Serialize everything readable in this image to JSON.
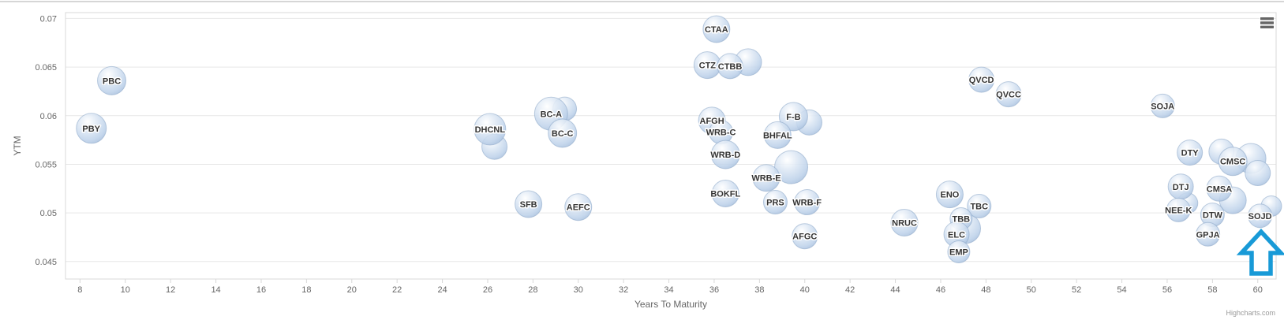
{
  "chart": {
    "title": "",
    "credit": "Highcharts.com",
    "menu_icon": "hamburger-icon"
  },
  "chart_data": {
    "type": "scatter",
    "subtype": "bubble",
    "title": "",
    "xlabel": "Years To Maturity",
    "ylabel": "YTM",
    "xlim": [
      7.36,
      60.81
    ],
    "ylim": [
      0.0432,
      0.0706
    ],
    "x_ticks": [
      8,
      10,
      12,
      14,
      16,
      18,
      20,
      22,
      24,
      26,
      28,
      30,
      32,
      34,
      36,
      38,
      40,
      42,
      44,
      46,
      48,
      50,
      52,
      54,
      56,
      58,
      60
    ],
    "y_ticks": [
      "0.045",
      "0.05",
      "0.055",
      "0.06",
      "0.065",
      "0.07"
    ],
    "grid": "horizontal",
    "legend": "none",
    "points": [
      {
        "label": "PBY",
        "x": 8.5,
        "y": 0.0587,
        "r": 19
      },
      {
        "label": "PBC",
        "x": 9.4,
        "y": 0.0636,
        "r": 18
      },
      {
        "label": "DHCNL",
        "x": 26.1,
        "y": 0.0586,
        "r": 20
      },
      {
        "label": "BC-A",
        "x": 28.8,
        "y": 0.0602,
        "r": 21
      },
      {
        "label": "BC-C",
        "x": 29.3,
        "y": 0.0582,
        "r": 18
      },
      {
        "label": "SFB",
        "x": 27.8,
        "y": 0.0509,
        "r": 17
      },
      {
        "label": "AEFC",
        "x": 30.0,
        "y": 0.0506,
        "r": 17
      },
      {
        "label": "CTAA",
        "x": 36.1,
        "y": 0.0689,
        "r": 17
      },
      {
        "label": "CTZ",
        "x": 35.7,
        "y": 0.0652,
        "r": 17
      },
      {
        "label": "CTBB",
        "x": 36.7,
        "y": 0.0651,
        "r": 16
      },
      {
        "label": "AFGH",
        "x": 35.9,
        "y": 0.0595,
        "r": 17
      },
      {
        "label": "WRB-C",
        "x": 36.3,
        "y": 0.0583,
        "r": 15
      },
      {
        "label": "WRB-D",
        "x": 36.5,
        "y": 0.056,
        "r": 18
      },
      {
        "label": "WRB-E",
        "x": 38.3,
        "y": 0.0536,
        "r": 17
      },
      {
        "label": "BOKFL",
        "x": 36.5,
        "y": 0.052,
        "r": 17
      },
      {
        "label": "F-B",
        "x": 39.5,
        "y": 0.0599,
        "r": 18
      },
      {
        "label": "BHFAL",
        "x": 38.8,
        "y": 0.058,
        "r": 17
      },
      {
        "label": "PRS",
        "x": 38.7,
        "y": 0.0511,
        "r": 15
      },
      {
        "label": "WRB-F",
        "x": 40.1,
        "y": 0.0511,
        "r": 16
      },
      {
        "label": "AFGC",
        "x": 40.0,
        "y": 0.0476,
        "r": 16
      },
      {
        "label": "NRUC",
        "x": 44.4,
        "y": 0.049,
        "r": 17
      },
      {
        "label": "ENO",
        "x": 46.4,
        "y": 0.0519,
        "r": 17
      },
      {
        "label": "TBC",
        "x": 47.7,
        "y": 0.0507,
        "r": 15
      },
      {
        "label": "TBB",
        "x": 46.9,
        "y": 0.0494,
        "r": 14
      },
      {
        "label": "ELC",
        "x": 46.7,
        "y": 0.0478,
        "r": 16
      },
      {
        "label": "EMP",
        "x": 46.8,
        "y": 0.046,
        "r": 14
      },
      {
        "label": "QVCD",
        "x": 47.8,
        "y": 0.0637,
        "r": 16
      },
      {
        "label": "QVCC",
        "x": 49.0,
        "y": 0.0622,
        "r": 16
      },
      {
        "label": "SOJA",
        "x": 55.8,
        "y": 0.061,
        "r": 15
      },
      {
        "label": "DTY",
        "x": 57.0,
        "y": 0.0562,
        "r": 16
      },
      {
        "label": "CMSC",
        "x": 58.9,
        "y": 0.0553,
        "r": 18
      },
      {
        "label": "DTJ",
        "x": 56.6,
        "y": 0.0527,
        "r": 16
      },
      {
        "label": "CMSA",
        "x": 58.3,
        "y": 0.0525,
        "r": 16
      },
      {
        "label": "NEE-K",
        "x": 56.5,
        "y": 0.0503,
        "r": 15
      },
      {
        "label": "DTW",
        "x": 58.0,
        "y": 0.0498,
        "r": 15
      },
      {
        "label": "SOJD",
        "x": 60.1,
        "y": 0.0497,
        "r": 15
      },
      {
        "label": "GPJA",
        "x": 57.8,
        "y": 0.0478,
        "r": 15
      }
    ],
    "unlabeled_points": [
      {
        "x": 26.3,
        "y": 0.0568,
        "r": 16
      },
      {
        "x": 29.4,
        "y": 0.0607,
        "r": 15
      },
      {
        "x": 37.5,
        "y": 0.0655,
        "r": 17
      },
      {
        "x": 40.2,
        "y": 0.0593,
        "r": 16
      },
      {
        "x": 39.4,
        "y": 0.0547,
        "r": 21
      },
      {
        "x": 47.1,
        "y": 0.0484,
        "r": 19
      },
      {
        "x": 58.4,
        "y": 0.0563,
        "r": 16
      },
      {
        "x": 59.7,
        "y": 0.0556,
        "r": 19
      },
      {
        "x": 60.0,
        "y": 0.0541,
        "r": 16
      },
      {
        "x": 58.9,
        "y": 0.0513,
        "r": 17
      },
      {
        "x": 56.9,
        "y": 0.051,
        "r": 13
      },
      {
        "x": 60.6,
        "y": 0.0507,
        "r": 13
      }
    ],
    "colors": {
      "bubble_highlight": "#ffffff",
      "bubble_mid": "#dce7f4",
      "bubble_body": "#bed2ea",
      "bubble_edge": "#a6bedc",
      "bubble_stroke": "#8aa5c6",
      "label_text": "#333333",
      "axis_text": "#666666",
      "gridline": "#e7e7e7",
      "plot_border": "#d8d8d8",
      "top_rule": "#c9c9c9",
      "menu_icon": "#666666",
      "credit_text": "#999999"
    },
    "annotation": {
      "type": "up-arrow",
      "color": "#189ad7",
      "target_label": "SOJD"
    }
  }
}
